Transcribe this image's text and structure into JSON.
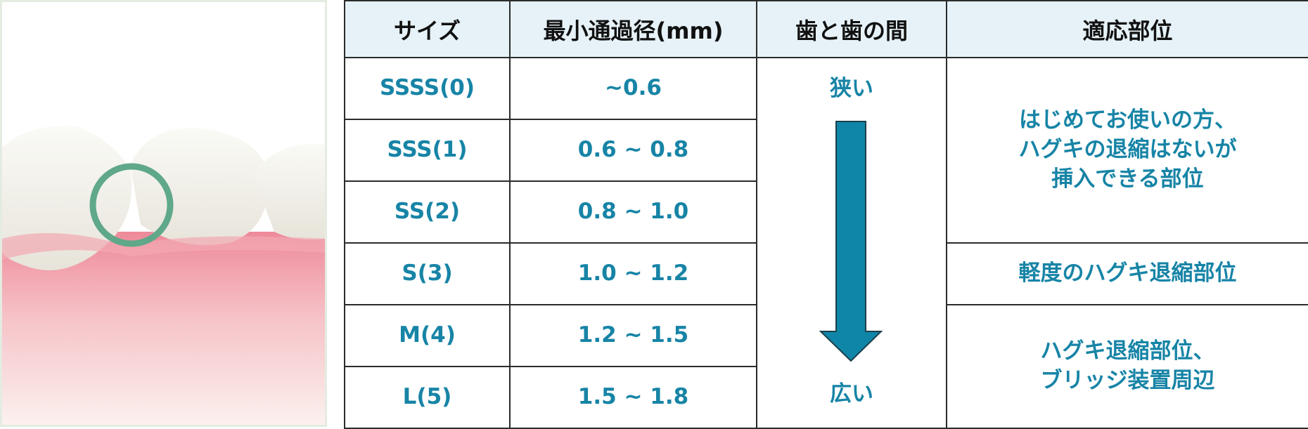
{
  "table": {
    "headers": [
      "サイズ",
      "最小通過径(mm)",
      "歯と歯の間",
      "適応部位"
    ],
    "rows": [
      {
        "size": "SSSS(0)",
        "diameter": "~0.6"
      },
      {
        "size": "SSS(1)",
        "diameter": "0.6 ~ 0.8"
      },
      {
        "size": "SS(2)",
        "diameter": "0.8 ~ 1.0"
      },
      {
        "size": "S(3)",
        "diameter": "1.0 ~ 1.2"
      },
      {
        "size": "M(4)",
        "diameter": "1.2 ~ 1.5"
      },
      {
        "size": "L(5)",
        "diameter": "1.5 ~ 1.8"
      }
    ],
    "gap": {
      "top": "狭い",
      "bottom": "広い"
    },
    "fit": [
      {
        "lines": [
          "はじめてお使いの方、",
          "ハグキの退縮はないが",
          "挿入できる部位"
        ]
      },
      {
        "lines": [
          "軽度のハグキ退縮部位"
        ]
      },
      {
        "lines": [
          "ハグキ退縮部位、",
          "ブリッジ装置周辺"
        ]
      }
    ]
  }
}
